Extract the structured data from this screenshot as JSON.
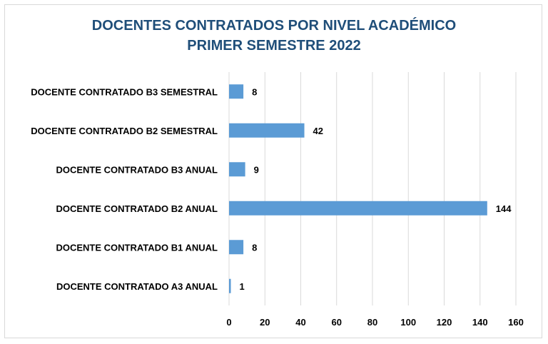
{
  "chart_data": {
    "type": "bar",
    "orientation": "horizontal",
    "title": [
      "DOCENTES CONTRATADOS POR NIVEL ACADÉMICO",
      "PRIMER SEMESTRE 2022"
    ],
    "categories": [
      "DOCENTE CONTRATADO B3 SEMESTRAL",
      "DOCENTE CONTRATADO B2 SEMESTRAL",
      "DOCENTE CONTRATADO B3 ANUAL",
      "DOCENTE CONTRATADO B2 ANUAL",
      "DOCENTE CONTRATADO B1 ANUAL",
      "DOCENTE CONTRATADO A3 ANUAL"
    ],
    "values": [
      8,
      42,
      9,
      144,
      8,
      1
    ],
    "xlim": [
      0,
      160
    ],
    "xticks": [
      "0",
      "20",
      "40",
      "60",
      "80",
      "100",
      "120",
      "140",
      "160"
    ],
    "xlabel": "",
    "ylabel": "",
    "grid": true,
    "legend": "none",
    "data_labels": true,
    "colors": {
      "bar": "#5b9bd5",
      "title": "#1f4e79",
      "grid": "#d9d9d9"
    }
  }
}
